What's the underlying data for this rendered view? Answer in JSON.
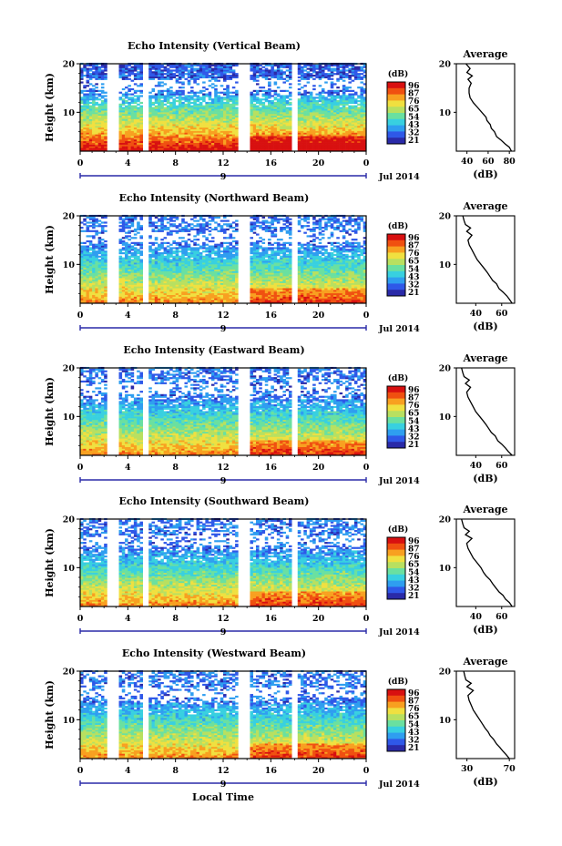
{
  "figure": {
    "xlabel": "Local Time",
    "date_label": "Jul 2014",
    "date_day": "9",
    "colorbar_unit": "(dB)",
    "colorbar_ticks": [
      "96",
      "87",
      "76",
      "65",
      "54",
      "43",
      "32",
      "21"
    ],
    "avg_title": "Average",
    "avg_xlabel": "(dB)",
    "ylabel": "Height (km)",
    "colors": {
      "colormap": [
        "#2a2aa8",
        "#2f58e8",
        "#2f9ef0",
        "#38d0e0",
        "#6ae0a0",
        "#b8e060",
        "#f0e040",
        "#f8a020",
        "#f05010",
        "#d81010"
      ]
    }
  },
  "chart_data": [
    {
      "type": "heatmap",
      "title": "Echo Intensity (Vertical Beam)",
      "x_ticks": [
        "0",
        "4",
        "8",
        "12",
        "16",
        "20",
        "0"
      ],
      "xlim": [
        0,
        24
      ],
      "y_ticks": [
        "20",
        "10"
      ],
      "ylim": [
        2,
        20
      ],
      "gaps_hours": [
        [
          2.3,
          3.2
        ],
        [
          5.3,
          5.8
        ],
        [
          13.3,
          14.3
        ],
        [
          17.7,
          18.3
        ]
      ],
      "profile": {
        "title": "Average",
        "x_ticks": [
          "40",
          "60",
          "80"
        ],
        "xlim": [
          30,
          85
        ],
        "y_ticks": [
          "20",
          "10"
        ],
        "heights": [
          2.0,
          2.8,
          3.5,
          4.3,
          5.0,
          6.0,
          6.7,
          7.5,
          8.3,
          9.0,
          10.0,
          11.0,
          12.0,
          13.0,
          14.0,
          15.0,
          16.0,
          16.8,
          17.5,
          18.2,
          19.0,
          20.0
        ],
        "values": [
          82,
          80,
          76,
          72,
          68,
          66,
          63,
          62,
          59,
          58,
          54,
          50,
          46,
          43,
          42,
          42,
          44,
          41,
          45,
          40,
          43,
          39
        ]
      }
    },
    {
      "type": "heatmap",
      "title": "Echo Intensity (Northward Beam)",
      "x_ticks": [
        "0",
        "4",
        "8",
        "12",
        "16",
        "20",
        "0"
      ],
      "xlim": [
        0,
        24
      ],
      "y_ticks": [
        "20",
        "10"
      ],
      "ylim": [
        2,
        20
      ],
      "gaps_hours": [
        [
          2.3,
          3.2
        ],
        [
          5.3,
          5.8
        ],
        [
          13.3,
          14.3
        ],
        [
          17.7,
          18.3
        ]
      ],
      "profile": {
        "title": "Average",
        "x_ticks": [
          "40",
          "60"
        ],
        "xlim": [
          25,
          70
        ],
        "y_ticks": [
          "20",
          "10"
        ],
        "heights": [
          2.0,
          2.8,
          3.5,
          4.3,
          5.0,
          6.0,
          6.7,
          7.5,
          8.3,
          9.0,
          10.0,
          11.0,
          12.0,
          13.0,
          14.0,
          15.0,
          16.0,
          16.8,
          17.5,
          18.2,
          19.0,
          20.0
        ],
        "values": [
          68,
          66,
          64,
          61,
          58,
          56,
          53,
          51,
          49,
          47,
          44,
          41,
          39,
          37,
          35,
          34,
          37,
          33,
          36,
          32,
          31,
          30
        ]
      }
    },
    {
      "type": "heatmap",
      "title": "Echo Intensity (Eastward Beam)",
      "x_ticks": [
        "0",
        "4",
        "8",
        "12",
        "16",
        "20",
        "0"
      ],
      "xlim": [
        0,
        24
      ],
      "y_ticks": [
        "20",
        "10"
      ],
      "ylim": [
        2,
        20
      ],
      "gaps_hours": [
        [
          2.3,
          3.2
        ],
        [
          5.3,
          5.8
        ],
        [
          13.3,
          14.3
        ],
        [
          17.7,
          18.3
        ]
      ],
      "profile": {
        "title": "Average",
        "x_ticks": [
          "40",
          "60"
        ],
        "xlim": [
          25,
          70
        ],
        "y_ticks": [
          "20",
          "10"
        ],
        "heights": [
          2.0,
          2.8,
          3.5,
          4.3,
          5.0,
          6.0,
          6.7,
          7.5,
          8.3,
          9.0,
          10.0,
          11.0,
          12.0,
          13.0,
          14.0,
          15.0,
          16.0,
          16.8,
          17.5,
          18.2,
          19.0,
          20.0
        ],
        "values": [
          68,
          65,
          63,
          60,
          57,
          55,
          52,
          50,
          48,
          46,
          43,
          40,
          38,
          36,
          34,
          33,
          36,
          32,
          35,
          31,
          30,
          29
        ]
      }
    },
    {
      "type": "heatmap",
      "title": "Echo Intensity (Southward Beam)",
      "x_ticks": [
        "0",
        "4",
        "8",
        "12",
        "16",
        "20",
        "0"
      ],
      "xlim": [
        0,
        24
      ],
      "y_ticks": [
        "20",
        "10"
      ],
      "ylim": [
        2,
        20
      ],
      "gaps_hours": [
        [
          2.3,
          3.2
        ],
        [
          5.3,
          5.8
        ],
        [
          13.3,
          14.3
        ],
        [
          17.7,
          18.3
        ]
      ],
      "profile": {
        "title": "Average",
        "x_ticks": [
          "40",
          "60"
        ],
        "xlim": [
          25,
          70
        ],
        "y_ticks": [
          "20",
          "10"
        ],
        "heights": [
          2.0,
          2.8,
          3.5,
          4.3,
          5.0,
          6.0,
          6.7,
          7.5,
          8.3,
          9.0,
          10.0,
          11.0,
          12.0,
          13.0,
          14.0,
          15.0,
          16.0,
          16.8,
          17.5,
          18.2,
          19.0,
          20.0
        ],
        "values": [
          68,
          66,
          63,
          61,
          58,
          55,
          53,
          51,
          48,
          46,
          44,
          41,
          38,
          36,
          34,
          33,
          37,
          32,
          35,
          31,
          30,
          29
        ]
      }
    },
    {
      "type": "heatmap",
      "title": "Echo Intensity (Westward Beam)",
      "x_ticks": [
        "0",
        "4",
        "8",
        "12",
        "16",
        "20",
        "0"
      ],
      "xlim": [
        0,
        24
      ],
      "y_ticks": [
        "20",
        "10"
      ],
      "ylim": [
        2,
        20
      ],
      "gaps_hours": [
        [
          2.3,
          3.2
        ],
        [
          5.3,
          5.8
        ],
        [
          13.3,
          14.3
        ],
        [
          17.7,
          18.3
        ]
      ],
      "profile": {
        "title": "Average",
        "x_ticks": [
          "30",
          "70"
        ],
        "xlim": [
          20,
          75
        ],
        "y_ticks": [
          "20",
          "10"
        ],
        "heights": [
          2.0,
          2.8,
          3.5,
          4.3,
          5.0,
          6.0,
          6.7,
          7.5,
          8.3,
          9.0,
          10.0,
          11.0,
          12.0,
          13.0,
          14.0,
          15.0,
          16.0,
          16.8,
          17.5,
          18.2,
          19.0,
          20.0
        ],
        "values": [
          70,
          67,
          64,
          61,
          58,
          55,
          52,
          50,
          47,
          45,
          42,
          39,
          36,
          34,
          32,
          31,
          36,
          30,
          34,
          29,
          28,
          27
        ]
      }
    }
  ]
}
